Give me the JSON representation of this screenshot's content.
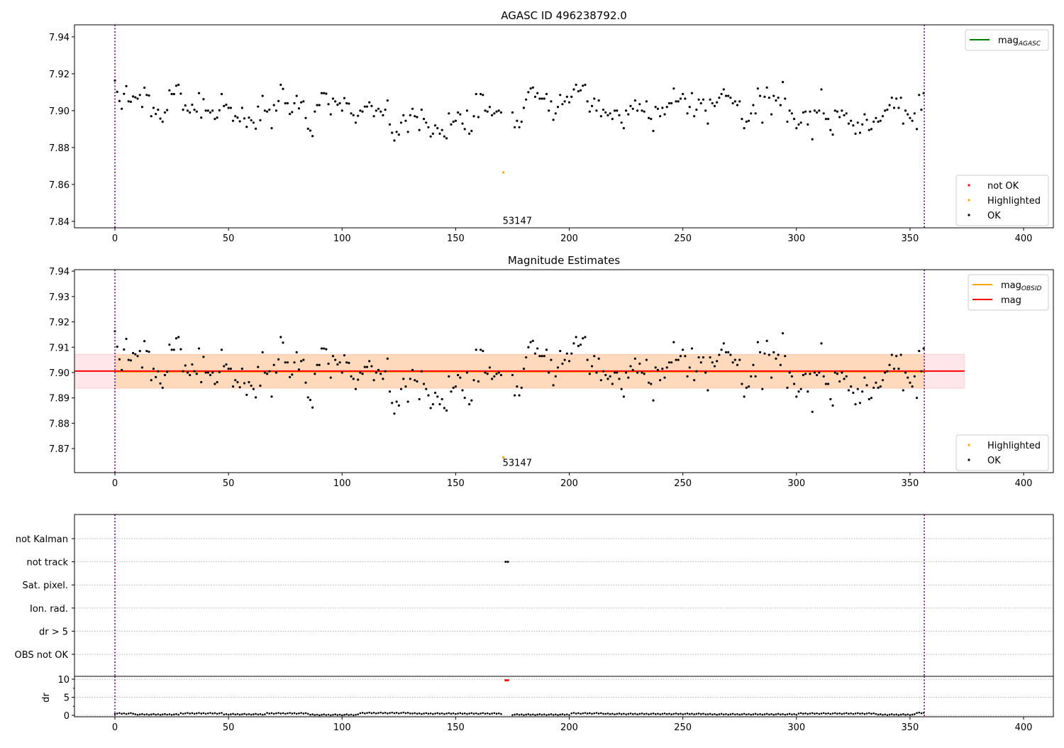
{
  "chart_data": [
    {
      "type": "scatter",
      "title": "AGASC ID 496238792.0",
      "xlim": [
        -17.8,
        413.1
      ],
      "ylim": [
        7.8365,
        7.9465
      ],
      "xticks": [
        0,
        50,
        100,
        150,
        200,
        250,
        300,
        350,
        400
      ],
      "yticks": [
        7.84,
        7.86,
        7.88,
        7.9,
        7.92,
        7.94
      ],
      "ytick_labels": [
        "7.84",
        "7.86",
        "7.88",
        "7.90",
        "7.92",
        "7.94"
      ],
      "vlines": [
        0,
        356.3
      ],
      "legend_upper": {
        "entries": [
          {
            "label": "mag",
            "sub": "AGASC",
            "color": "#008000"
          }
        ],
        "placement": "top-right"
      },
      "legend_lower": {
        "entries": [
          {
            "label": "not OK",
            "color": "#ff0000"
          },
          {
            "label": "Highlighted",
            "color": "#ffa500"
          },
          {
            "label": "OK",
            "color": "#000000"
          }
        ],
        "placement": "bottom-right"
      },
      "annotation": {
        "text": "53147",
        "x": 171,
        "y": 7.8405
      }
    },
    {
      "type": "scatter",
      "title": "Magnitude Estimates",
      "xlim": [
        -17.8,
        413.1
      ],
      "ylim": [
        7.8605,
        7.9406
      ],
      "xticks": [
        0,
        50,
        100,
        150,
        200,
        250,
        300,
        350,
        400
      ],
      "yticks": [
        7.87,
        7.88,
        7.89,
        7.9,
        7.91,
        7.92,
        7.93,
        7.94
      ],
      "ytick_labels": [
        "7.87",
        "7.88",
        "7.89",
        "7.90",
        "7.91",
        "7.92",
        "7.93",
        "7.94"
      ],
      "vlines": [
        0,
        356.3
      ],
      "mag": 7.9006,
      "mag_obsid": 7.9003,
      "band": {
        "ymin": 7.8938,
        "ymax": 7.9072,
        "x_full": [
          -17.8,
          374
        ],
        "x_obsid": [
          0,
          356.3
        ]
      },
      "legend_upper": {
        "entries": [
          {
            "label": "mag",
            "sub": "OBSID",
            "color": "#ffa500"
          },
          {
            "label": "mag",
            "sub": "",
            "color": "#ff0000"
          }
        ],
        "placement": "top-right"
      },
      "legend_lower": {
        "entries": [
          {
            "label": "Highlighted",
            "color": "#ffa500"
          },
          {
            "label": "OK",
            "color": "#000000"
          }
        ],
        "placement": "bottom-right"
      },
      "annotation": {
        "text": "53147",
        "x": 171,
        "y": 7.8645
      }
    },
    {
      "type": "scatter",
      "title": "",
      "categories": [
        "OBS not OK",
        "dr > 5",
        "Ion. rad.",
        "Sat. pixel.",
        "not track",
        "not Kalman"
      ],
      "not_track_x": [
        172,
        173
      ],
      "vlines": [
        0,
        356.3
      ]
    },
    {
      "type": "scatter",
      "ylabel": "dr",
      "ylim": [
        -0.4,
        10.8
      ],
      "yticks": [
        0,
        5,
        10
      ],
      "ytick_labels": [
        "0",
        "5",
        "10"
      ],
      "xticks": [
        0,
        50,
        100,
        150,
        200,
        250,
        300,
        350,
        400
      ],
      "dr_segments": [
        [
          0,
          8,
          0.5
        ],
        [
          9,
          28,
          0.25
        ],
        [
          29,
          47,
          0.55
        ],
        [
          48,
          66,
          0.3
        ],
        [
          67,
          85,
          0.55
        ],
        [
          86,
          107,
          0.15
        ],
        [
          108,
          130,
          0.65
        ],
        [
          131,
          170,
          0.5
        ],
        [
          175,
          200,
          0.2
        ],
        [
          201,
          215,
          0.55
        ],
        [
          216,
          260,
          0.4
        ],
        [
          261,
          300,
          0.3
        ],
        [
          301,
          335,
          0.5
        ],
        [
          336,
          352,
          0.2
        ],
        [
          353,
          356,
          0.7
        ]
      ],
      "dr_not_ok": [
        [
          172,
          9.7
        ],
        [
          173,
          9.7
        ]
      ]
    }
  ],
  "series": {
    "highlighted": {
      "x": 171,
      "y": 7.8665
    },
    "mag_ok": [
      7.9163,
      7.9102,
      7.9052,
      7.901,
      7.9091,
      7.9133,
      7.905,
      7.9048,
      7.9077,
      7.9072,
      7.9065,
      7.9085,
      7.902,
      7.9124,
      7.9085,
      7.9082,
      7.897,
      7.9015,
      7.8982,
      7.9005,
      7.8957,
      7.894,
      7.899,
      7.9003,
      7.911,
      7.909,
      7.909,
      7.9135,
      7.914,
      7.9092,
      7.9005,
      7.9028,
      7.9,
      7.899,
      7.9032,
      7.9005,
      7.8995,
      7.9095,
      7.8962,
      7.9062,
      7.9,
      7.9,
      7.899,
      7.9,
      7.8955,
      7.8962,
      7.9002,
      7.909,
      7.9025,
      7.9032,
      7.9015,
      7.9015,
      7.8945,
      7.897,
      7.8962,
      7.8942,
      7.9015,
      7.8958,
      7.8912,
      7.8962,
      7.8948,
      7.8935,
      7.8902,
      7.9022,
      7.8948,
      7.908,
      7.9,
      7.8995,
      7.9005,
      7.8905,
      7.903,
      7.9,
      7.9052,
      7.914,
      7.9118,
      7.904,
      7.904,
      7.8982,
      7.8992,
      7.904,
      7.908,
      7.9012,
      7.9045,
      7.905,
      7.896,
      7.8902,
      7.8892,
      7.8862,
      7.8995,
      7.903,
      7.903,
      7.9095,
      7.9095,
      7.9092,
      7.9035,
      7.898,
      7.9065,
      7.905,
      7.9032,
      7.904,
      7.9,
      7.9068,
      7.904,
      7.9038,
      7.8985,
      7.8975,
      7.8935,
      7.8972,
      7.9,
      7.8995,
      7.9022,
      7.9022,
      7.9045,
      7.9025,
      7.897,
      7.9,
      7.901,
      7.8995,
      7.8975,
      7.9005,
      7.9055,
      7.8925,
      7.888,
      7.8838,
      7.8885,
      7.887,
      7.8935,
      7.8975,
      7.8945,
      7.8885,
      7.8975,
      7.901,
      7.897,
      7.8965,
      7.8895,
      7.9005,
      7.8955,
      7.8935,
      7.891,
      7.886,
      7.8875,
      7.892,
      7.8905,
      7.8875,
      7.8895,
      7.886,
      7.885,
      7.8985,
      7.8925,
      7.894,
      7.8945,
      7.899,
      7.898,
      7.893,
      7.89,
      7.9,
      7.8875,
      7.889,
      7.897,
      7.909,
      7.8965,
      7.909,
      7.9085,
      7.9,
      7.8995,
      7.902,
      7.8975,
      7.8985,
      7.8995,
      7.9,
      7.899,
      null,
      null,
      null,
      null,
      7.899,
      7.891,
      7.8945,
      7.891,
      7.894,
      7.9015,
      7.906,
      7.91,
      7.912,
      7.9125,
      7.9075,
      7.9095,
      7.9065,
      7.9065,
      7.9065,
      7.909,
      7.9,
      7.905,
      7.895,
      7.8985,
      7.902,
      7.9085,
      7.9035,
      7.905,
      7.9075,
      7.9045,
      7.9075,
      7.9115,
      7.914,
      7.9105,
      7.911,
      7.9135,
      7.914,
      7.905,
      7.8995,
      7.9025,
      7.9065,
      7.9,
      7.9055,
      7.897,
      7.9005,
      7.899,
      7.8975,
      7.8985,
      7.8955,
      7.9,
      7.9,
      7.8975,
      7.8935,
      7.8905,
      7.9,
      7.898,
      7.9025,
      7.901,
      7.9055,
      7.9,
      7.9035,
      7.9,
      7.8995,
      7.905,
      7.896,
      7.8955,
      7.889,
      7.902,
      7.901,
      7.897,
      7.9015,
      7.898,
      7.902,
      7.904,
      7.904,
      7.912,
      7.905,
      7.905,
      7.9065,
      7.909,
      7.9065,
      7.8985,
      7.902,
      7.9095,
      7.897,
      7.9005,
      7.906,
      7.904,
      7.906,
      7.9,
      7.893,
      7.906,
      7.904,
      7.9025,
      7.9045,
      7.907,
      7.909,
      7.9115,
      7.908,
      7.908,
      7.907,
      7.904,
      7.905,
      7.903,
      7.905,
      7.8955,
      7.8905,
      7.894,
      7.8945,
      7.8985,
      7.903,
      7.8985,
      7.912,
      7.908,
      7.8935,
      7.9075,
      7.9125,
      7.907,
      7.898,
      7.908,
      7.9055,
      7.907,
      7.903,
      7.9155,
      7.9065,
      7.894,
      7.9,
      7.8985,
      7.8955,
      7.8905,
      7.8925,
      7.8935,
      7.899,
      7.8995,
      7.8925,
      7.8995,
      7.8845,
      7.9,
      7.899,
      7.9,
      7.9115,
      7.8985,
      7.8955,
      7.8955,
      7.8895,
      7.887,
      7.9,
      7.8995,
      7.8965,
      7.9,
      7.8975,
      7.8985,
      7.893,
      7.8945,
      7.892,
      7.8875,
      7.8935,
      7.888,
      7.8925,
      7.898,
      7.895,
      7.8895,
      7.89,
      7.894,
      7.896,
      7.894,
      7.8945,
      7.897,
      7.9,
      7.9005,
      7.903,
      7.907,
      7.9015,
      7.9065,
      7.9015,
      7.907,
      7.893,
      7.9,
      7.898,
      7.896,
      7.8945,
      7.8985,
      7.89,
      7.9085,
      7.9005,
      7.9095
    ]
  },
  "colors": {
    "ok": "#000000",
    "highlighted": "#ffa500",
    "not_ok": "#ff0000",
    "vline": "#800080",
    "mag": "#ff0000",
    "mag_obsid": "#ffa500",
    "mag_agasc": "#008000"
  }
}
